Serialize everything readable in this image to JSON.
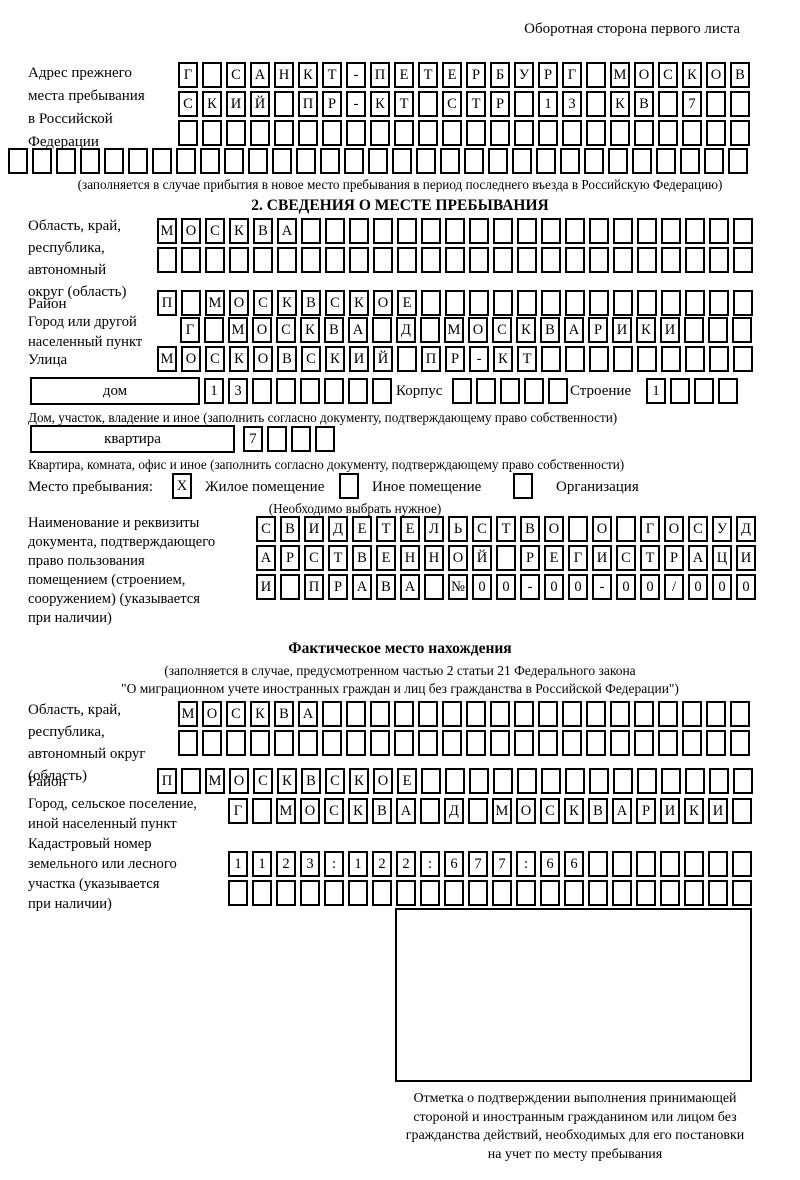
{
  "header": {
    "back_side_note": "Оборотная сторона первого листа"
  },
  "prev_address": {
    "label_lines": [
      "Адрес прежнего",
      "места пребывания",
      "в Российской",
      "Федерации"
    ],
    "rows": [
      {
        "text": "Г САНКТ-ПЕТЕРБУРГ МОСКОВ",
        "count": 24
      },
      {
        "text": "СКИЙ ПР-КТ СТР 13 КВ 7",
        "count": 24
      },
      {
        "text": "",
        "count": 24
      },
      {
        "text": "",
        "count": 31
      }
    ],
    "footnote": "(заполняется в случае прибытия в новое место пребывания в период последнего въезда в Российскую Федерацию)"
  },
  "section2": {
    "title": "2. СВЕДЕНИЯ О МЕСТЕ ПРЕБЫВАНИЯ",
    "oblast": {
      "label_lines": [
        "Область, край,",
        "республика,",
        "автономный",
        "округ (область)"
      ],
      "rows": [
        {
          "text": "МОСКВА",
          "count": 25
        },
        {
          "text": "",
          "count": 25
        }
      ]
    },
    "raion": {
      "label": "Район",
      "row": {
        "text": "П МОСКВСКОЕ",
        "count": 25
      }
    },
    "gorod": {
      "label_lines": [
        "Город или другой",
        "населенный пункт"
      ],
      "row": {
        "text": "Г МОСКВА Д МОСКВАРИКИ",
        "count": 24
      }
    },
    "ulitsa": {
      "label": "Улица",
      "row": {
        "text": "МОСКОВСКИЙ ПР-КТ",
        "count": 25
      }
    },
    "dom": {
      "box_label": "дом",
      "row": {
        "text": "13",
        "count": 8
      },
      "korpus_label": "Корпус",
      "korpus_row": {
        "text": "",
        "count": 5
      },
      "stroenie_label": "Строение",
      "stroenie_row": {
        "text": "1",
        "count": 4
      },
      "footnote": "Дом, участок, владение и иное (заполнить согласно документу, подтверждающему право собственности)"
    },
    "kvartira": {
      "box_label": "квартира",
      "row": {
        "text": "7",
        "count": 4
      },
      "footnote": "Квартира, комната, офис и иное (заполнить согласно документу, подтверждающему право собственности)"
    },
    "mesto": {
      "label": "Место пребывания:",
      "options": [
        {
          "label": "Жилое помещение",
          "mark": "X"
        },
        {
          "label": "Иное помещение",
          "mark": ""
        },
        {
          "label": "Организация",
          "mark": ""
        }
      ],
      "note": "(Необходимо выбрать нужное)"
    },
    "document": {
      "label_lines": [
        "Наименование и реквизиты",
        "документа, подтверждающего",
        "право пользования",
        "помещением (строением,",
        "сооружением) (указывается",
        "при наличии)"
      ],
      "rows": [
        {
          "text": "СВИДЕТЕЛЬСТВО О ГОСУД",
          "count": 21
        },
        {
          "text": "АРСТВЕННОЙ РЕГИСТРАЦИ",
          "count": 21
        },
        {
          "text": "И ПРАВА №00-00-00/000",
          "count": 21
        }
      ]
    }
  },
  "factual": {
    "title": "Фактическое место нахождения",
    "subtitle_lines": [
      "(заполняется в случае, предусмотренном частью 2 статьи 21 Федерального закона",
      "\"О миграционном учете иностранных граждан и лиц без гражданства в Российской Федерации\")"
    ],
    "oblast": {
      "label_lines": [
        "Область, край,",
        "республика,",
        "автономный округ",
        "(область)"
      ],
      "rows": [
        {
          "text": "МОСКВА",
          "count": 24
        },
        {
          "text": "",
          "count": 24
        }
      ]
    },
    "raion": {
      "label": "Район",
      "row": {
        "text": "П МОСКВСКОЕ",
        "count": 25
      }
    },
    "gorod": {
      "label_lines": [
        "Город, сельское поселение,",
        "иной населенный пункт"
      ],
      "row": {
        "text": "Г МОСКВА Д МОСКВАРИКИ",
        "count": 22
      }
    },
    "kadastr": {
      "label_lines": [
        "Кадастровый номер",
        "земельного или лесного",
        "участка (указывается",
        "при наличии)"
      ],
      "rows": [
        {
          "text": "1123:122:677:66",
          "count": 22
        },
        {
          "text": "",
          "count": 22
        }
      ]
    },
    "stamp_caption_lines": [
      "Отметка о подтверждении выполнения принимающей",
      "стороной и иностранным гражданином или лицом без",
      "гражданства действий, необходимых для его постановки",
      "на учет по месту пребывания"
    ]
  }
}
